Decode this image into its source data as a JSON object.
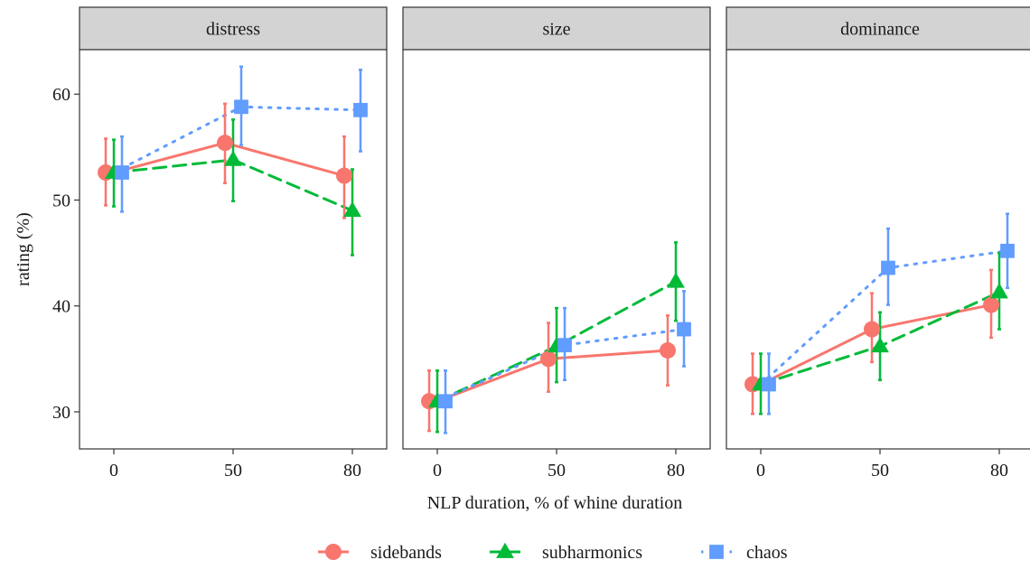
{
  "chart_data": {
    "type": "line",
    "xlabel": "NLP duration, % of whine duration",
    "ylabel": "rating (%)",
    "x_ticks": [
      "0",
      "50",
      "80"
    ],
    "y_ticks": [
      30,
      40,
      50,
      60
    ],
    "ylim": [
      26.5,
      64.2
    ],
    "legend_position": "bottom",
    "series": [
      {
        "name": "sidebands",
        "color": "#F8766D",
        "marker": "circle",
        "dash": "solid"
      },
      {
        "name": "subharmonics",
        "color": "#00BA38",
        "marker": "triangle",
        "dash": "dashed"
      },
      {
        "name": "chaos",
        "color": "#619CFF",
        "marker": "square",
        "dash": "dotted"
      }
    ],
    "panels": [
      {
        "title": "distress",
        "data": {
          "sidebands": [
            {
              "x": 0,
              "y": 52.6,
              "lo": 49.5,
              "hi": 55.8
            },
            {
              "x": 50,
              "y": 55.4,
              "lo": 51.6,
              "hi": 59.1
            },
            {
              "x": 80,
              "y": 52.3,
              "lo": 48.3,
              "hi": 56.0
            }
          ],
          "subharmonics": [
            {
              "x": 0,
              "y": 52.6,
              "lo": 49.4,
              "hi": 55.7
            },
            {
              "x": 50,
              "y": 53.8,
              "lo": 49.9,
              "hi": 57.6
            },
            {
              "x": 80,
              "y": 49.0,
              "lo": 44.8,
              "hi": 52.9
            }
          ],
          "chaos": [
            {
              "x": 0,
              "y": 52.6,
              "lo": 48.9,
              "hi": 56.0
            },
            {
              "x": 50,
              "y": 58.8,
              "lo": 55.2,
              "hi": 62.6
            },
            {
              "x": 80,
              "y": 58.5,
              "lo": 54.6,
              "hi": 62.3
            }
          ]
        }
      },
      {
        "title": "size",
        "data": {
          "sidebands": [
            {
              "x": 0,
              "y": 31.0,
              "lo": 28.2,
              "hi": 33.9
            },
            {
              "x": 50,
              "y": 35.0,
              "lo": 31.9,
              "hi": 38.4
            },
            {
              "x": 80,
              "y": 35.8,
              "lo": 32.5,
              "hi": 39.1
            }
          ],
          "subharmonics": [
            {
              "x": 0,
              "y": 31.0,
              "lo": 28.1,
              "hi": 33.9
            },
            {
              "x": 50,
              "y": 36.2,
              "lo": 32.8,
              "hi": 39.8
            },
            {
              "x": 80,
              "y": 42.3,
              "lo": 38.6,
              "hi": 46.0
            }
          ],
          "chaos": [
            {
              "x": 0,
              "y": 31.0,
              "lo": 28.0,
              "hi": 33.9
            },
            {
              "x": 50,
              "y": 36.3,
              "lo": 33.0,
              "hi": 39.8
            },
            {
              "x": 80,
              "y": 37.8,
              "lo": 34.3,
              "hi": 41.4
            }
          ]
        }
      },
      {
        "title": "dominance",
        "data": {
          "sidebands": [
            {
              "x": 0,
              "y": 32.6,
              "lo": 29.8,
              "hi": 35.5
            },
            {
              "x": 50,
              "y": 37.8,
              "lo": 34.7,
              "hi": 41.2
            },
            {
              "x": 80,
              "y": 40.1,
              "lo": 37.0,
              "hi": 43.4
            }
          ],
          "subharmonics": [
            {
              "x": 0,
              "y": 32.6,
              "lo": 29.8,
              "hi": 35.5
            },
            {
              "x": 50,
              "y": 36.2,
              "lo": 33.0,
              "hi": 39.4
            },
            {
              "x": 80,
              "y": 41.3,
              "lo": 37.8,
              "hi": 45.0
            }
          ],
          "chaos": [
            {
              "x": 0,
              "y": 32.6,
              "lo": 29.8,
              "hi": 35.5
            },
            {
              "x": 50,
              "y": 43.6,
              "lo": 40.1,
              "hi": 47.3
            },
            {
              "x": 80,
              "y": 45.2,
              "lo": 41.7,
              "hi": 48.7
            }
          ]
        }
      }
    ]
  }
}
